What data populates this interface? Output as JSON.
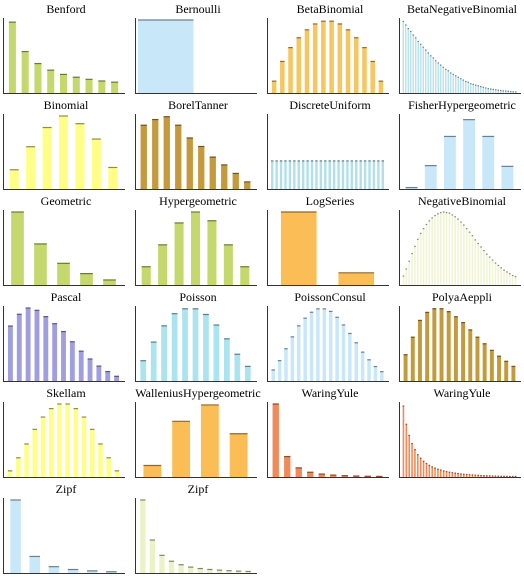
{
  "chart_data": [
    {
      "type": "bar",
      "title": "Benford",
      "color": "#c5d86d",
      "values": [
        30.1,
        17.6,
        12.5,
        9.7,
        7.9,
        6.7,
        5.8,
        5.1,
        4.6
      ],
      "ylim": [
        0,
        31
      ]
    },
    {
      "type": "bar",
      "title": "Bernoulli",
      "color": "#c8e8fa",
      "values": [
        100
      ],
      "wide": true,
      "ylim": [
        0,
        100
      ]
    },
    {
      "type": "bar",
      "title": "BetaBinomial",
      "color": "#f6c660",
      "values": [
        3,
        8,
        11.5,
        14,
        16,
        17.5,
        18.2,
        18.2,
        17.5,
        16,
        14,
        11.5,
        8,
        3
      ],
      "ylim": [
        0,
        18.5
      ]
    },
    {
      "type": "bar",
      "title": "BetaNegativeBinomial",
      "color": "#b9e1ea",
      "values": [
        10,
        9.5,
        9,
        8.6,
        8.1,
        7.7,
        7.2,
        6.8,
        6.4,
        6,
        5.6,
        5.2,
        4.9,
        4.5,
        4.2,
        3.9,
        3.6,
        3.3,
        3.1,
        2.8,
        2.6,
        2.4,
        2.2,
        2,
        1.8,
        1.6,
        1.5,
        1.3,
        1.2,
        1.1,
        1,
        0.9,
        0.8,
        0.7,
        0.6,
        0.55,
        0.5,
        0.45,
        0.4,
        0.35,
        0.3,
        0.27,
        0.24,
        0.2,
        0.18,
        0.15
      ],
      "ylim": [
        0,
        10.2
      ]
    },
    {
      "type": "bar",
      "title": "Binomial",
      "color": "#ffff88",
      "values": [
        2.5,
        5.5,
        8,
        9.5,
        8.5,
        6.5,
        2.8
      ],
      "ylim": [
        0,
        9.5
      ]
    },
    {
      "type": "bar",
      "title": "BorelTanner",
      "color": "#c49a3c",
      "values": [
        9,
        9.8,
        10.2,
        9,
        7.2,
        6,
        4.5,
        3.4,
        2.2,
        1
      ],
      "ylim": [
        0,
        10.3
      ]
    },
    {
      "type": "bar",
      "title": "DiscreteUniform",
      "color": "#b2e0ea",
      "values": [
        1,
        1,
        1,
        1,
        1,
        1,
        1,
        1,
        1,
        1,
        1,
        1,
        1,
        1,
        1,
        1,
        1,
        1,
        1,
        1,
        1,
        1,
        1,
        1,
        1,
        1
      ],
      "ylim": [
        0,
        2.6
      ]
    },
    {
      "type": "bar",
      "title": "FisherHypergeometric",
      "color": "#c8e8fa",
      "values": [
        0.02,
        0.32,
        0.72,
        0.95,
        0.72,
        0.31
      ],
      "wide": true,
      "ylim": [
        0,
        1
      ]
    },
    {
      "type": "bar",
      "title": "Geometric",
      "color": "#c5d86d",
      "values": [
        32,
        18,
        9.5,
        5,
        2.2
      ],
      "ylim": [
        0,
        32
      ]
    },
    {
      "type": "bar",
      "title": "Hypergeometric",
      "color": "#c5d86d",
      "values": [
        2.5,
        5.5,
        8.5,
        10,
        8.8,
        5.5,
        2.5
      ],
      "ylim": [
        0,
        10
      ]
    },
    {
      "type": "bar",
      "title": "LogSeries",
      "color": "#fbbe56",
      "values": [
        72,
        12
      ],
      "wide": true,
      "ylim": [
        0,
        72
      ]
    },
    {
      "type": "bar",
      "title": "NegativeBinomial",
      "color": "#f1f5d4",
      "values": [
        1.5,
        2.7,
        4,
        5.3,
        6.5,
        7.7,
        8.7,
        9.5,
        10.2,
        10.8,
        11.3,
        11.7,
        12,
        12.2,
        12.3,
        12.2,
        12.1,
        11.8,
        11.5,
        11.1,
        10.6,
        10.1,
        9.5,
        8.9,
        8.3,
        7.6,
        7,
        6.4,
        5.8,
        5.2,
        4.7,
        4.2,
        3.7,
        3.3,
        2.9,
        2.5,
        2.2,
        1.9,
        1.6,
        1.4
      ],
      "ylim": [
        0,
        12.3
      ]
    },
    {
      "type": "bar",
      "title": "Pascal",
      "color": "#a09ee0",
      "values": [
        7,
        8.5,
        9.3,
        9,
        8.2,
        7.3,
        6.3,
        5,
        3.8,
        2.8,
        1.9,
        1.2,
        0.6
      ],
      "ylim": [
        0,
        9.3
      ]
    },
    {
      "type": "bar",
      "title": "Poisson",
      "color": "#abe3ef",
      "values": [
        2.5,
        4.8,
        6.8,
        8.3,
        8.9,
        8.9,
        8.2,
        6.9,
        5.2,
        3.3,
        1.8
      ],
      "ylim": [
        0,
        9
      ]
    },
    {
      "type": "bar",
      "title": "PoissonConsul",
      "color": "#c8e8fa",
      "values": [
        1.3,
        2.4,
        3.8,
        5.2,
        6.5,
        7.4,
        8.1,
        8.5,
        8.5,
        8.2,
        7.5,
        6.6,
        5.6,
        4.5,
        3.4,
        2.5,
        1.7,
        1.1
      ],
      "ylim": [
        0,
        8.6
      ]
    },
    {
      "type": "bar",
      "title": "PolyaAeppli",
      "color": "#c49a3c",
      "values": [
        3.6,
        6,
        8.3,
        9.4,
        9.9,
        9.9,
        9.5,
        8.8,
        8,
        7,
        6,
        5.1,
        4.2,
        3.4,
        2.7,
        2
      ],
      "ylim": [
        0,
        10
      ]
    },
    {
      "type": "bar",
      "title": "Skellam",
      "color": "#ffff88",
      "values": [
        0.8,
        2.5,
        4.3,
        6.2,
        7.8,
        8.9,
        9.5,
        9.5,
        8.9,
        7.8,
        6.2,
        4.3,
        2.5,
        0.8
      ],
      "ylim": [
        0,
        9.5
      ]
    },
    {
      "type": "bar",
      "title": "WalleniusHypergeometric",
      "color": "#fbbe56",
      "values": [
        1.2,
        5.8,
        7.5,
        4.5
      ],
      "wide": true,
      "ylim": [
        0,
        7.6
      ]
    },
    {
      "type": "bar",
      "title": "WaringYule",
      "color": "#f08a58",
      "values": [
        100,
        28,
        12.5,
        6.5,
        4,
        2.6,
        1.8,
        1.3,
        1,
        0.8
      ],
      "ylim": [
        0,
        100
      ]
    },
    {
      "type": "bar",
      "title": "WaringYule",
      "color": "#f08a58",
      "values": [
        70,
        52,
        41,
        33,
        27,
        22,
        18.5,
        15.5,
        13.3,
        11.5,
        10,
        8.8,
        7.7,
        6.8,
        6,
        5.3,
        4.7,
        4.2,
        3.8,
        3.4,
        3,
        2.7,
        2.4,
        2.2,
        2,
        1.8,
        1.6,
        1.45,
        1.3,
        1.2,
        1.1,
        1,
        0.9,
        0.8,
        0.7,
        0.65,
        0.6,
        0.55,
        0.5,
        0.45
      ],
      "ylim": [
        0,
        72
      ]
    },
    {
      "type": "bar",
      "title": "Zipf",
      "color": "#c8e8fa",
      "values": [
        75,
        17,
        6.5,
        3.6,
        2.2,
        1.3
      ],
      "ylim": [
        0,
        75
      ]
    },
    {
      "type": "bar",
      "title": "Zipf",
      "color": "#ebf2c5",
      "values": [
        62,
        28,
        15,
        10,
        7,
        5,
        3.8,
        3,
        2.4,
        2,
        1.6,
        1.3
      ],
      "ylim": [
        0,
        62
      ]
    }
  ]
}
